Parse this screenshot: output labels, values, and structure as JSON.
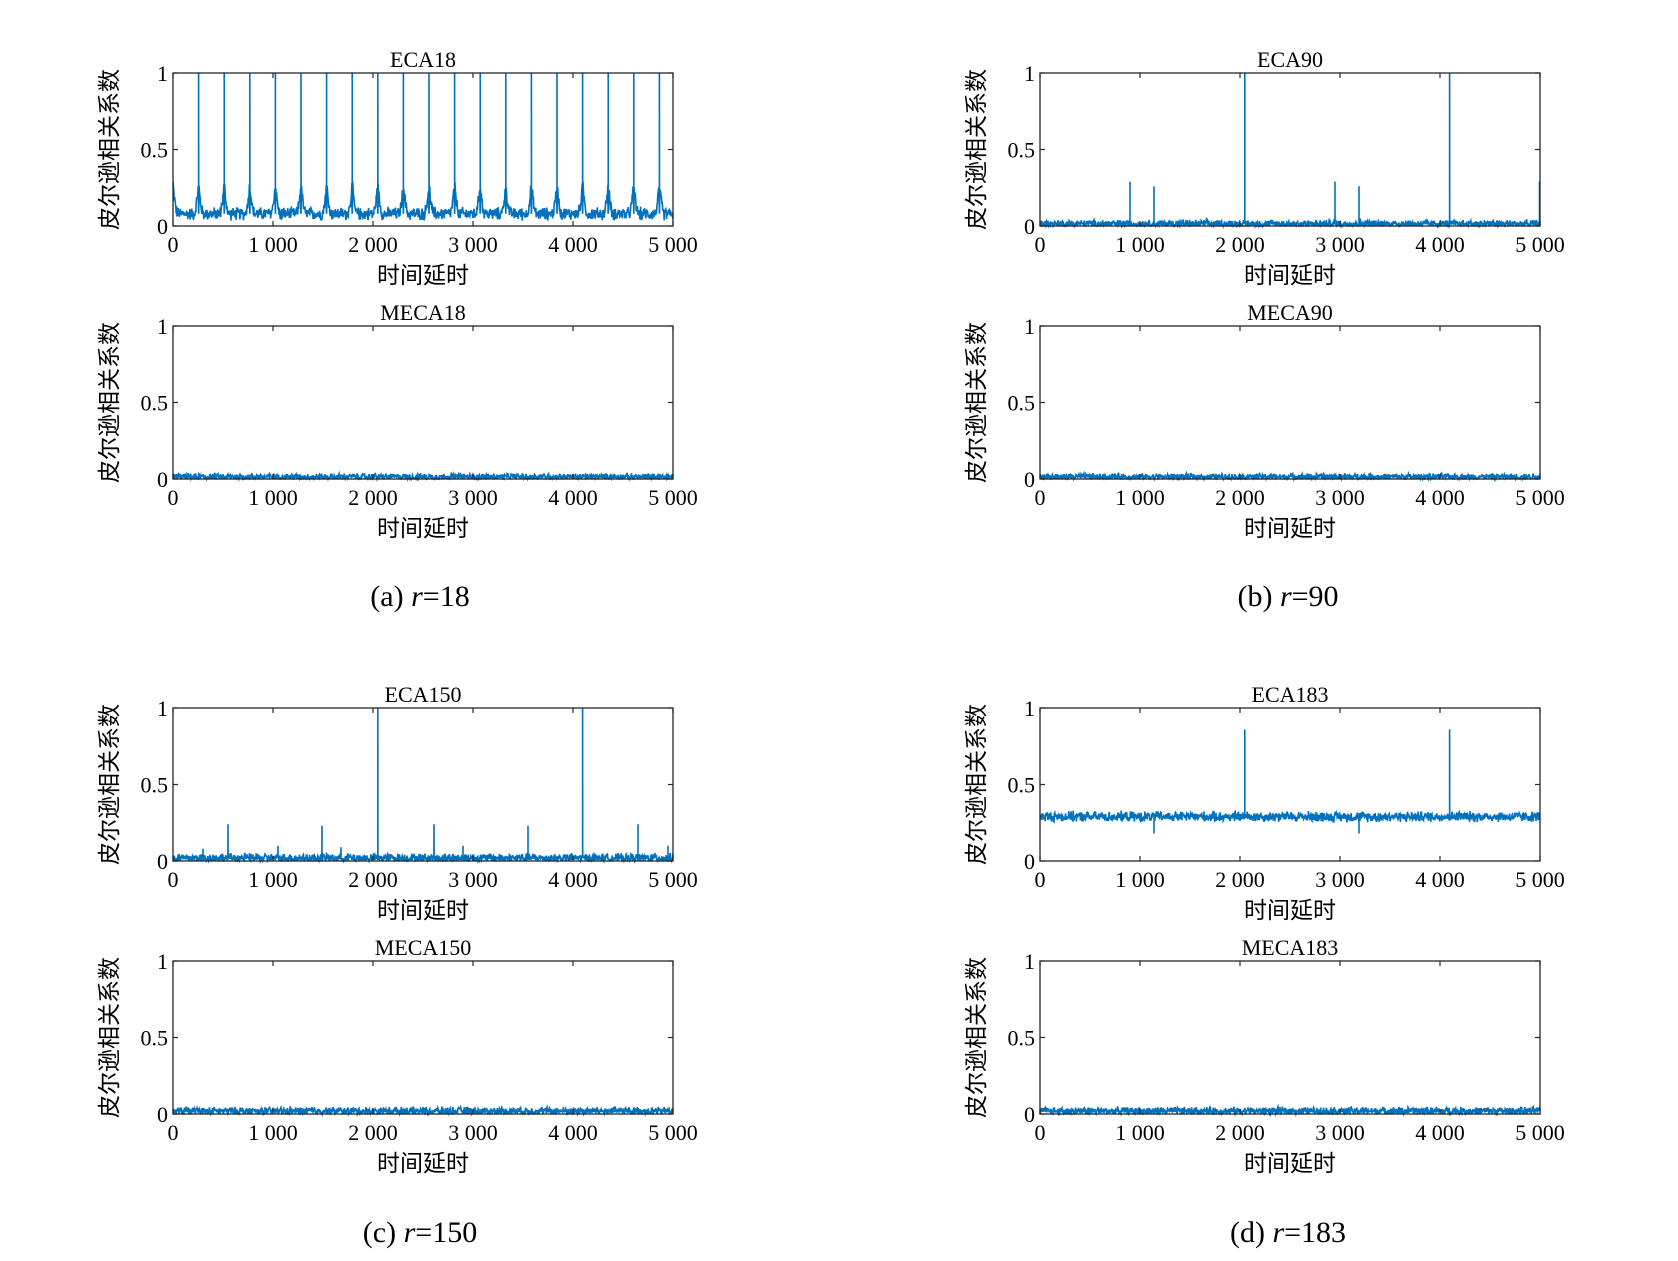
{
  "colors": {
    "series": "#0072BD",
    "axis": "#262626",
    "background": "#ffffff"
  },
  "chart_data": [
    {
      "id": "eca18",
      "type": "line",
      "title": "ECA18",
      "xlabel": "时间延时",
      "ylabel": "皮尔逊相关系数",
      "xlim": [
        0,
        5000
      ],
      "ylim": [
        0,
        1
      ],
      "xticks": [
        "0",
        "1 000",
        "2 000",
        "3 000",
        "4 000",
        "5 000"
      ],
      "yticks": [
        "0",
        "0.5",
        "1"
      ],
      "series": [
        {
          "baseline_mean": 0.08,
          "baseline_spread": 0.05,
          "peaks_at_multiples_of": 256,
          "peak_value": 1.0,
          "peak_base": 0.2,
          "peak_halfwidth": 50
        }
      ]
    },
    {
      "id": "meca18",
      "type": "line",
      "title": "MECA18",
      "xlabel": "时间延时",
      "ylabel": "皮尔逊相关系数",
      "xlim": [
        0,
        5000
      ],
      "ylim": [
        0,
        1
      ],
      "xticks": [
        "0",
        "1 000",
        "2 000",
        "3 000",
        "4 000",
        "5 000"
      ],
      "yticks": [
        "0",
        "0.5",
        "1"
      ],
      "series": [
        {
          "baseline_mean": 0.015,
          "baseline_spread": 0.025,
          "peaks": []
        }
      ]
    },
    {
      "id": "eca90",
      "type": "line",
      "title": "ECA90",
      "xlabel": "时间延时",
      "ylabel": "皮尔逊相关系数",
      "xlim": [
        0,
        5000
      ],
      "ylim": [
        0,
        1
      ],
      "xticks": [
        "0",
        "1 000",
        "2 000",
        "3 000",
        "4 000",
        "5 000"
      ],
      "yticks": [
        "0",
        "0.5",
        "1"
      ],
      "series": [
        {
          "baseline_mean": 0.015,
          "baseline_spread": 0.03,
          "peaks": [
            [
              900,
              0.29
            ],
            [
              1140,
              0.26
            ],
            [
              2048,
              1.0
            ],
            [
              2950,
              0.29
            ],
            [
              3190,
              0.26
            ],
            [
              4096,
              1.0
            ],
            [
              4995,
              0.29
            ]
          ]
        }
      ]
    },
    {
      "id": "meca90",
      "type": "line",
      "title": "MECA90",
      "xlabel": "时间延时",
      "ylabel": "皮尔逊相关系数",
      "xlim": [
        0,
        5000
      ],
      "ylim": [
        0,
        1
      ],
      "xticks": [
        "0",
        "1 000",
        "2 000",
        "3 000",
        "4 000",
        "5 000"
      ],
      "yticks": [
        "0",
        "0.5",
        "1"
      ],
      "series": [
        {
          "baseline_mean": 0.015,
          "baseline_spread": 0.025,
          "peaks": []
        }
      ]
    },
    {
      "id": "eca150",
      "type": "line",
      "title": "ECA150",
      "xlabel": "时间延时",
      "ylabel": "皮尔逊相关系数",
      "xlim": [
        0,
        5000
      ],
      "ylim": [
        0,
        1
      ],
      "xticks": [
        "0",
        "1 000",
        "2 000",
        "3 000",
        "4 000",
        "5 000"
      ],
      "yticks": [
        "0",
        "0.5",
        "1"
      ],
      "series": [
        {
          "baseline_mean": 0.02,
          "baseline_spread": 0.035,
          "peaks": [
            [
              300,
              0.08
            ],
            [
              550,
              0.24
            ],
            [
              1050,
              0.1
            ],
            [
              1490,
              0.23
            ],
            [
              1680,
              0.09
            ],
            [
              2048,
              1.0
            ],
            [
              2610,
              0.24
            ],
            [
              2900,
              0.1
            ],
            [
              3550,
              0.23
            ],
            [
              4096,
              1.0
            ],
            [
              4650,
              0.24
            ],
            [
              4950,
              0.1
            ]
          ]
        }
      ]
    },
    {
      "id": "meca150",
      "type": "line",
      "title": "MECA150",
      "xlabel": "时间延时",
      "ylabel": "皮尔逊相关系数",
      "xlim": [
        0,
        5000
      ],
      "ylim": [
        0,
        1
      ],
      "xticks": [
        "0",
        "1 000",
        "2 000",
        "3 000",
        "4 000",
        "5 000"
      ],
      "yticks": [
        "0",
        "0.5",
        "1"
      ],
      "series": [
        {
          "baseline_mean": 0.02,
          "baseline_spread": 0.03,
          "peaks": []
        }
      ]
    },
    {
      "id": "eca183",
      "type": "line",
      "title": "ECA183",
      "xlabel": "时间延时",
      "ylabel": "皮尔逊相关系数",
      "xlim": [
        0,
        5000
      ],
      "ylim": [
        0,
        1
      ],
      "xticks": [
        "0",
        "1 000",
        "2 000",
        "3 000",
        "4 000",
        "5 000"
      ],
      "yticks": [
        "0",
        "0.5",
        "1"
      ],
      "series": [
        {
          "baseline_mean": 0.29,
          "baseline_spread": 0.04,
          "dips": [
            [
              1140,
              0.18
            ],
            [
              3190,
              0.18
            ]
          ],
          "peaks": [
            [
              2048,
              0.86
            ],
            [
              4096,
              0.86
            ]
          ]
        }
      ]
    },
    {
      "id": "meca183",
      "type": "line",
      "title": "MECA183",
      "xlabel": "时间延时",
      "ylabel": "皮尔逊相关系数",
      "xlim": [
        0,
        5000
      ],
      "ylim": [
        0,
        1
      ],
      "xticks": [
        "0",
        "1 000",
        "2 000",
        "3 000",
        "4 000",
        "5 000"
      ],
      "yticks": [
        "0",
        "0.5",
        "1"
      ],
      "series": [
        {
          "baseline_mean": 0.02,
          "baseline_spread": 0.03,
          "peaks": []
        }
      ]
    }
  ],
  "captions": [
    {
      "label": "(a)",
      "var": "r",
      "value": "=18"
    },
    {
      "label": "(b)",
      "var": "r",
      "value": "=90"
    },
    {
      "label": "(c)",
      "var": "r",
      "value": "=150"
    },
    {
      "label": "(d)",
      "var": "r",
      "value": "=183"
    }
  ]
}
